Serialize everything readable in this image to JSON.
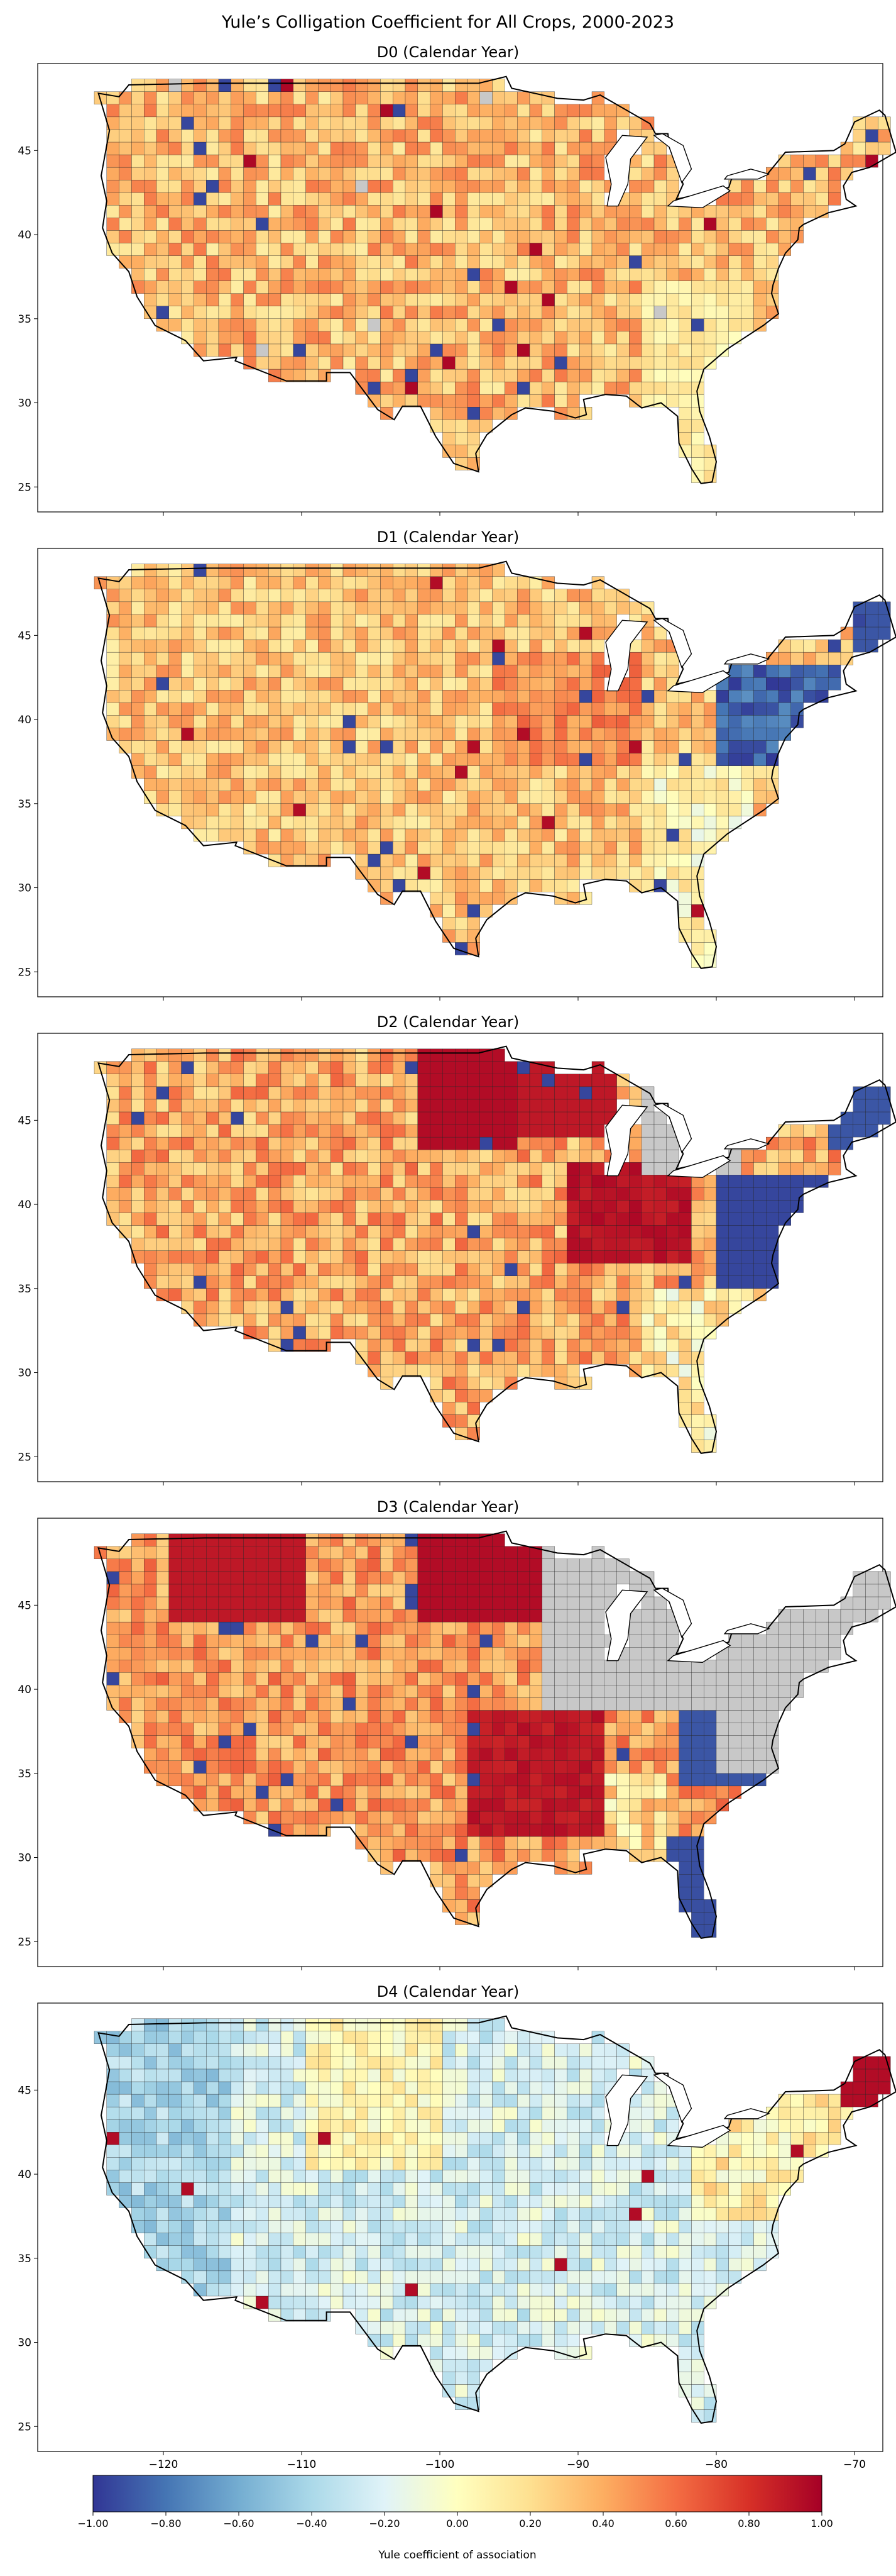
{
  "figure": {
    "title": "Yule’s Colligation Coefficient for All Crops, 2000-2023"
  },
  "map_common": {
    "y_ticks": [
      "25",
      "30",
      "35",
      "40",
      "45"
    ],
    "x_ticks": [
      "−120",
      "−110",
      "−100",
      "−90",
      "−80",
      "−70"
    ],
    "y_range": [
      24,
      49.5
    ],
    "x_range": [
      -125,
      -66
    ]
  },
  "panels": [
    {
      "title": "D0 (Calendar Year)",
      "pattern": "warm_mixed"
    },
    {
      "title": "D1 (Calendar Year)",
      "pattern": "warm_with_east_negative"
    },
    {
      "title": "D2 (Calendar Year)",
      "pattern": "strong_central_positive"
    },
    {
      "title": "D3 (Calendar Year)",
      "pattern": "very_strong_with_gray_east"
    },
    {
      "title": "D4 (Calendar Year)",
      "pattern": "cool_negative"
    }
  ],
  "colorbar": {
    "label": "Yule coefficient of association",
    "ticks": [
      "−1.00",
      "−0.80",
      "−0.60",
      "−0.40",
      "−0.20",
      "0.00",
      "0.20",
      "0.40",
      "0.60",
      "0.80",
      "1.00"
    ],
    "range": [
      -1,
      1
    ],
    "colormap": "RdYlBu_r",
    "stops": [
      "#313695",
      "#4575b4",
      "#74add1",
      "#abd9e9",
      "#e0f3f8",
      "#ffffbf",
      "#fee090",
      "#fdae61",
      "#f46d43",
      "#d73027",
      "#a50026"
    ],
    "no_data_color": "#c8c8c8"
  }
}
